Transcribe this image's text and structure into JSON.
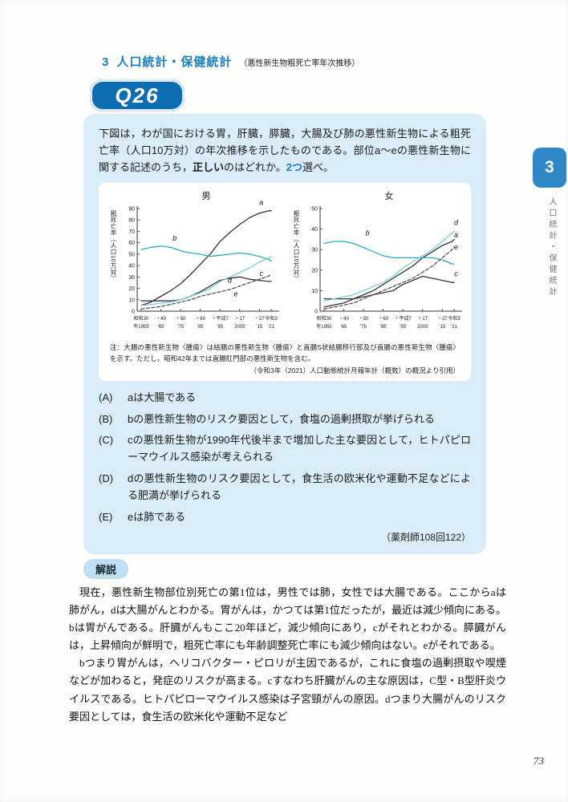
{
  "page": {
    "number": "73"
  },
  "header": {
    "chapter_no": "3",
    "title": "人口統計・保健統計",
    "subtitle": "（悪性新生物粗死亡率年次推移）"
  },
  "side_tab": {
    "number": "3",
    "label": "人口統計・保健統計"
  },
  "question": {
    "badge": "Q26",
    "text_before": "下図は，わが国における胃，肝臓，膵臓，大腸及び肺の悪性新生物による粗死亡率（人口10万対）の年次推移を示したものである。部位a～eの悪性新生物に関する記述のうち，",
    "text_emphasis": "正しい",
    "text_mid": "のはどれか。",
    "text_count": "2つ",
    "text_after": "選べ。",
    "note_line1": "注：大腸の悪性新生物〈腫瘍〉は結腸の悪性新生物〈腫瘍〉と直腸S状結腸移行部及び直腸の悪性新生物〈腫瘍〉を示す。ただし，昭和42年までは直腸肛門部の悪性新生物を含む。",
    "note_line2": "（令和3年（2021）人口動態統計月報年計（概数）の概況より引用）",
    "options": [
      {
        "label": "(A)",
        "text": "aは大腸である"
      },
      {
        "label": "(B)",
        "text": "bの悪性新生物のリスク要因として，食塩の過剰摂取が挙げられる"
      },
      {
        "label": "(C)",
        "text": "cの悪性新生物が1990年代後半まで増加した主な要因として，ヒトパピローマウイルス感染が考えられる"
      },
      {
        "label": "(D)",
        "text": "dの悪性新生物のリスク要因として，食生活の欧米化や運動不足などによる肥満が挙げられる"
      },
      {
        "label": "(E)",
        "text": "eは肺である"
      }
    ],
    "source": "（薬剤師108回122）"
  },
  "explanation": {
    "heading": "解説",
    "paragraphs": [
      "現在，悪性新生物部位別死亡の第1位は，男性では肺，女性では大腸である。ここからaは肺がん，dは大腸がんとわかる。胃がんは，かつては第1位だったが，最近は減少傾向にある。bは胃がんである。肝臓がんもここ20年ほど，減少傾向にあり，cがそれとわかる。膵臓がんは，上昇傾向が鮮明で，粗死亡率にも年齢調整死亡率にも減少傾向はない。eがそれである。",
      "bつまり胃がんは，ヘリコバクター・ピロリが主因であるが，これに食塩の過剰摂取や喫煙などが加わると，発症のリスクが高まる。cすなわち肝臓がんの主な原因は，C型・B型肝炎ウイルスである。ヒトパピローマウイルス感染は子宮頸がんの原因。dつまり大腸がんのリスク要因としては，食生活の欧米化や運動不足など"
    ]
  },
  "colors": {
    "accent_blue": "#1b7fc0",
    "badge_blue": "#0d6db3",
    "box_blue": "#d9ecf8",
    "line_black": "#333333",
    "line_teal": "#2fa8bf",
    "line_cyan": "#7ecbdc",
    "line_dash": "#555555"
  },
  "chart_data": [
    {
      "type": "line",
      "title": "男",
      "ylabel": "粗死亡率（人口10万対）",
      "ylim": [
        0,
        90
      ],
      "yticks": [
        0,
        10,
        20,
        30,
        40,
        50,
        60,
        70,
        80,
        90
      ],
      "xlim": [
        1953,
        2023
      ],
      "xticks": [
        {
          "x": 1955,
          "era": "昭和30",
          "year": "年1955"
        },
        {
          "x": 1965,
          "era": "・40",
          "year": "'65"
        },
        {
          "x": 1975,
          "era": "・50",
          "year": "'75"
        },
        {
          "x": 1985,
          "era": "・60",
          "year": "'85"
        },
        {
          "x": 1995,
          "era": "・平成7",
          "year": "'95"
        },
        {
          "x": 2005,
          "era": "・17",
          "year": "2005"
        },
        {
          "x": 2015,
          "era": "・27",
          "year": "'15"
        },
        {
          "x": 2021,
          "era": "令和3",
          "year": "'21"
        }
      ],
      "x": [
        1955,
        1960,
        1965,
        1970,
        1975,
        1980,
        1985,
        1990,
        1995,
        2000,
        2005,
        2010,
        2015,
        2020,
        2021
      ],
      "series": [
        {
          "name": "a",
          "color": "#333333",
          "dash": false,
          "label_pos": [
            2016,
            93
          ],
          "values": [
            5,
            8,
            13,
            18,
            24,
            32,
            41,
            50,
            61,
            69,
            76,
            82,
            86,
            88,
            88
          ]
        },
        {
          "name": "b",
          "color": "#2fa8bf",
          "dash": false,
          "label_pos": [
            1972,
            62
          ],
          "values": [
            54,
            56,
            57,
            56,
            53,
            51,
            50,
            48,
            49,
            50,
            51,
            50,
            48,
            45,
            44
          ]
        },
        {
          "name": "c",
          "color": "#333333",
          "dash": false,
          "label_pos": [
            2016,
            31
          ],
          "values": [
            9,
            9,
            9,
            9,
            10,
            13,
            17,
            22,
            27,
            29,
            30,
            28,
            27,
            26,
            26
          ]
        },
        {
          "name": "d",
          "color": "#7ecbdc",
          "dash": false,
          "label_pos": [
            2000,
            25
          ],
          "values": [
            5,
            6,
            7,
            8,
            10,
            13,
            16,
            20,
            26,
            30,
            34,
            38,
            43,
            47,
            48
          ]
        },
        {
          "name": "e",
          "color": "#555555",
          "dash": true,
          "label_pos": [
            2003,
            13
          ],
          "values": [
            2,
            3,
            4,
            6,
            8,
            10,
            13,
            15,
            17,
            19,
            22,
            25,
            28,
            31,
            32
          ]
        }
      ]
    },
    {
      "type": "line",
      "title": "女",
      "ylabel": "粗死亡率（人口10万対）",
      "ylim": [
        0,
        50
      ],
      "yticks": [
        0,
        10,
        20,
        30,
        40,
        50
      ],
      "xlim": [
        1953,
        2023
      ],
      "xticks": [
        {
          "x": 1955,
          "era": "昭和30",
          "year": "年1955"
        },
        {
          "x": 1965,
          "era": "・40",
          "year": "'65"
        },
        {
          "x": 1975,
          "era": "・50",
          "year": "'75"
        },
        {
          "x": 1985,
          "era": "・60",
          "year": "'85"
        },
        {
          "x": 1995,
          "era": "・平成7",
          "year": "'95"
        },
        {
          "x": 2005,
          "era": "・17",
          "year": "2005"
        },
        {
          "x": 2015,
          "era": "・27",
          "year": "'15"
        },
        {
          "x": 2021,
          "era": "令和3",
          "year": "'21"
        }
      ],
      "x": [
        1955,
        1960,
        1965,
        1970,
        1975,
        1980,
        1985,
        1990,
        1995,
        2000,
        2005,
        2010,
        2015,
        2020,
        2021
      ],
      "series": [
        {
          "name": "a",
          "color": "#333333",
          "dash": false,
          "label_pos": [
            2022,
            36
          ],
          "values": [
            2,
            3,
            4,
            6,
            8,
            10,
            13,
            16,
            19,
            22,
            26,
            29,
            32,
            34,
            35
          ]
        },
        {
          "name": "b",
          "color": "#2fa8bf",
          "dash": false,
          "label_pos": [
            1977,
            37
          ],
          "values": [
            33,
            34,
            34,
            33,
            31,
            29,
            27,
            26,
            26,
            26,
            26,
            26,
            25,
            23,
            23
          ]
        },
        {
          "name": "c",
          "color": "#333333",
          "dash": false,
          "label_pos": [
            2022,
            17
          ],
          "values": [
            6,
            6,
            6,
            6,
            7,
            8,
            9,
            10,
            13,
            15,
            17,
            16,
            15,
            14,
            14
          ]
        },
        {
          "name": "d",
          "color": "#7ecbdc",
          "dash": false,
          "label_pos": [
            2022,
            42
          ],
          "values": [
            5,
            6,
            7,
            8,
            10,
            12,
            14,
            17,
            21,
            24,
            27,
            30,
            34,
            38,
            39
          ]
        },
        {
          "name": "e",
          "color": "#555555",
          "dash": true,
          "label_pos": [
            2022,
            30
          ],
          "values": [
            1,
            2,
            3,
            4,
            6,
            8,
            10,
            12,
            14,
            16,
            19,
            22,
            26,
            30,
            31
          ]
        }
      ]
    }
  ]
}
